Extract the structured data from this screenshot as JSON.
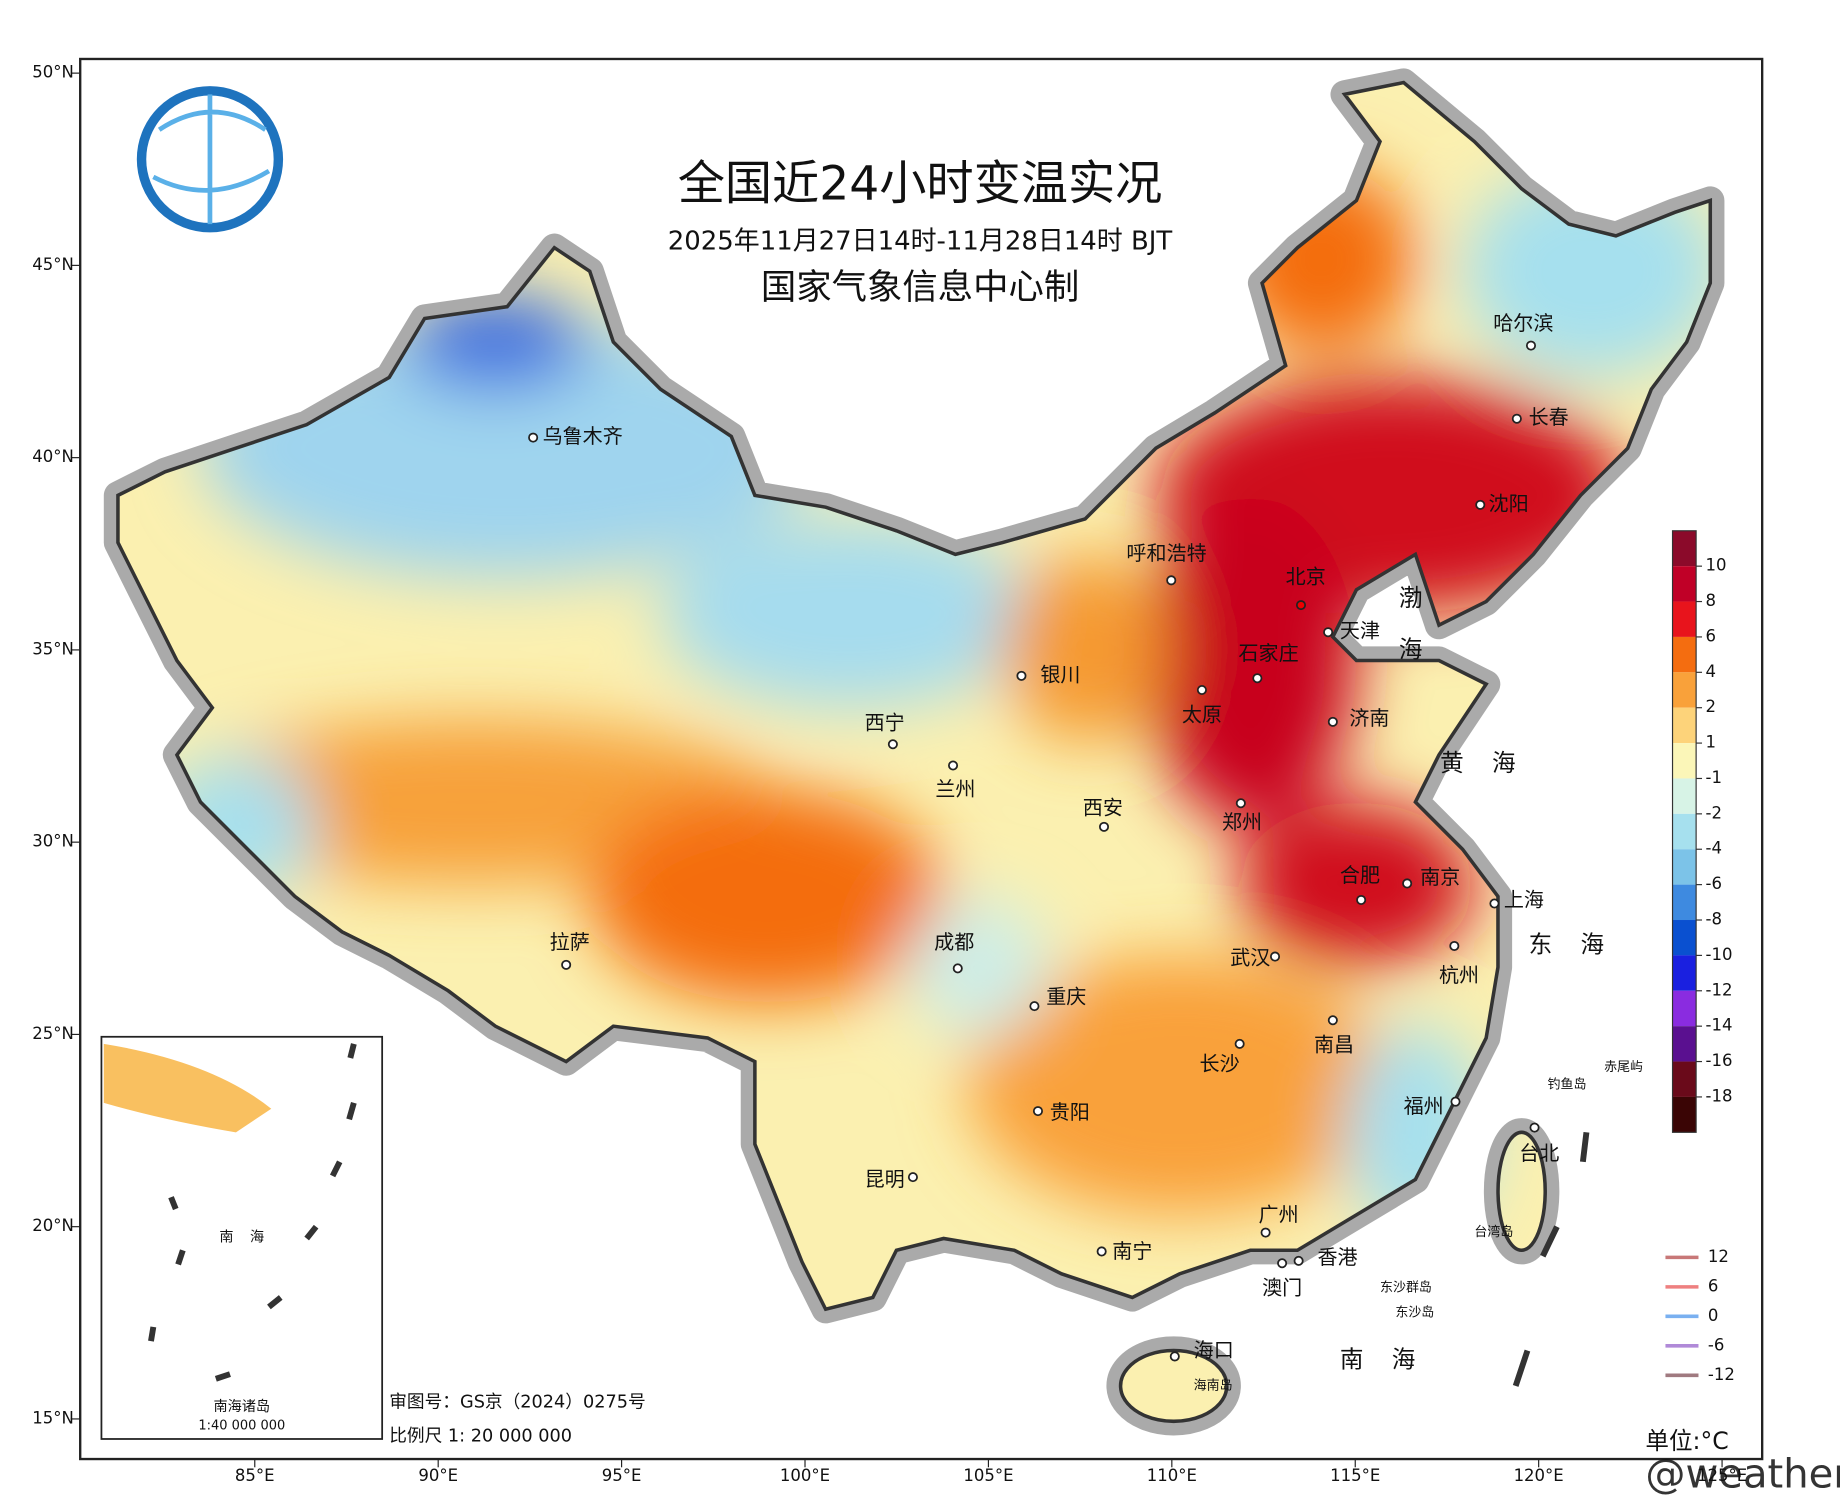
{
  "map": {
    "title": "全国近24小时变温实况",
    "subtitle": "2025年11月27日14时-11月28日14时 BJT",
    "producer": "国家气象信息中心制",
    "lat_ticks": [
      {
        "value": 50,
        "label": "50°N"
      },
      {
        "value": 45,
        "label": "45°N"
      },
      {
        "value": 40,
        "label": "40°N"
      },
      {
        "value": 35,
        "label": "35°N"
      },
      {
        "value": 30,
        "label": "30°N"
      },
      {
        "value": 25,
        "label": "25°N"
      },
      {
        "value": 20,
        "label": "20°N"
      },
      {
        "value": 15,
        "label": "15°N"
      }
    ],
    "lon_ticks": [
      {
        "value": 85,
        "label": "85°E"
      },
      {
        "value": 90,
        "label": "90°E"
      },
      {
        "value": 95,
        "label": "95°E"
      },
      {
        "value": 100,
        "label": "100°E"
      },
      {
        "value": 105,
        "label": "105°E"
      },
      {
        "value": 110,
        "label": "110°E"
      },
      {
        "value": 115,
        "label": "115°E"
      },
      {
        "value": 120,
        "label": "120°E"
      },
      {
        "value": 125,
        "label": "125°E"
      }
    ],
    "cities": [
      "乌鲁木齐",
      "哈尔滨",
      "长春",
      "沈阳",
      "呼和浩特",
      "北京",
      "天津",
      "石家庄",
      "银川",
      "太原",
      "济南",
      "西宁",
      "兰州",
      "西安",
      "郑州",
      "合肥",
      "南京",
      "上海",
      "拉萨",
      "成都",
      "武汉",
      "杭州",
      "重庆",
      "长沙",
      "南昌",
      "贵阳",
      "福州",
      "台北",
      "昆明",
      "广州",
      "南宁",
      "香港",
      "澳门",
      "海口"
    ],
    "small_labels": [
      "钓鱼岛",
      "赤尾屿",
      "台湾岛",
      "东沙群岛",
      "东沙岛",
      "海南岛"
    ],
    "seas": [
      "渤海",
      "黄海",
      "东海",
      "南海"
    ],
    "colorbar": {
      "ticks": [
        10,
        8,
        6,
        4,
        2,
        1,
        -1,
        -2,
        -4,
        -6,
        -8,
        -10,
        -12,
        -14,
        -16,
        -18
      ],
      "colors": [
        "#8b0a2a",
        "#c00027",
        "#e8141c",
        "#f46d10",
        "#f9a13a",
        "#fdd37a",
        "#fbf6b8",
        "#d7f3e6",
        "#a6e0ee",
        "#7cc3e8",
        "#3e8ae0",
        "#0a50d0",
        "#1a20e0",
        "#8a2ce0",
        "#5a1090",
        "#6a0a1a",
        "#3a0505"
      ]
    },
    "isoline_legend": {
      "values": [
        12,
        6,
        0,
        -6,
        -12
      ],
      "colors": [
        "#c87878",
        "#ee8080",
        "#7ab0f0",
        "#b08ad8",
        "#a07a80"
      ]
    },
    "unit": "单位:°C",
    "approval": "审图号：GS京（2024）0275号",
    "scale": "比例尺 1: 20 000 000",
    "inset": {
      "title": "南海诸岛",
      "scale": "1:40 000 000",
      "sea": "南海"
    },
    "watermark": "@weatherman_信欣"
  }
}
